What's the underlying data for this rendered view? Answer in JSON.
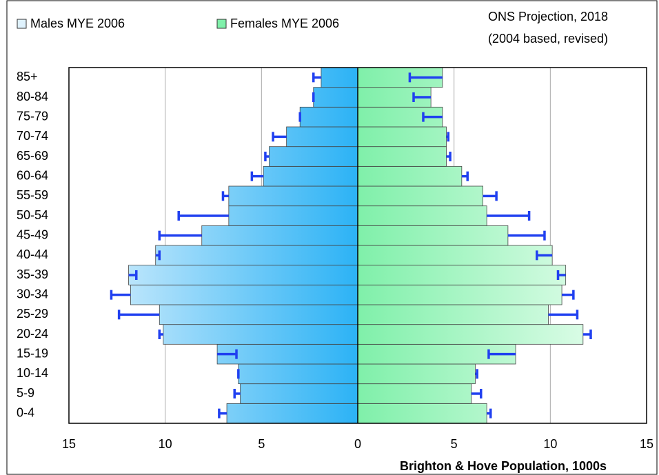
{
  "chart_data": {
    "type": "pyramid",
    "categories": [
      "0-4",
      "5-9",
      "10-14",
      "15-19",
      "20-24",
      "25-29",
      "30-34",
      "35-39",
      "40-44",
      "45-49",
      "50-54",
      "55-59",
      "60-64",
      "65-69",
      "70-74",
      "75-79",
      "80-84",
      "85+"
    ],
    "series": [
      {
        "name": "Males MYE 2006",
        "color": "#2bb2f5",
        "values": [
          -6.8,
          -6.1,
          -6.2,
          -7.3,
          -10.1,
          -10.3,
          -11.8,
          -11.9,
          -10.5,
          -8.1,
          -6.7,
          -6.7,
          -4.9,
          -4.6,
          -3.7,
          -3.0,
          -2.3,
          -1.9
        ]
      },
      {
        "name": "Females MYE 2006",
        "color": "#80f0aa",
        "values": [
          6.7,
          5.9,
          6.1,
          8.2,
          11.7,
          9.9,
          10.6,
          10.8,
          10.1,
          7.8,
          6.7,
          6.5,
          5.4,
          4.6,
          4.6,
          4.4,
          3.8,
          4.4
        ]
      }
    ],
    "projection": {
      "name": [
        "ONS Projection, 2018",
        "(2004 based, revised)"
      ],
      "color": "#2040f0",
      "males": [
        -7.2,
        -6.4,
        -6.2,
        -6.3,
        -10.3,
        -12.4,
        -12.8,
        -11.5,
        -10.3,
        -10.3,
        -9.3,
        -7.0,
        -5.5,
        -4.8,
        -4.4,
        -3.0,
        -2.3,
        -2.3
      ],
      "females": [
        6.9,
        6.4,
        6.2,
        6.8,
        12.1,
        11.4,
        11.2,
        10.4,
        9.3,
        9.7,
        8.9,
        7.2,
        5.7,
        4.8,
        4.7,
        3.4,
        2.9,
        2.7
      ]
    },
    "xlabel": "Brighton & Hove Population, 1000s",
    "xlim": [
      -15,
      15
    ],
    "xticks": [
      {
        "value": -15,
        "label": "15"
      },
      {
        "value": -10,
        "label": "10"
      },
      {
        "value": -5,
        "label": "5"
      },
      0,
      5,
      10,
      15
    ],
    "grid": true
  }
}
